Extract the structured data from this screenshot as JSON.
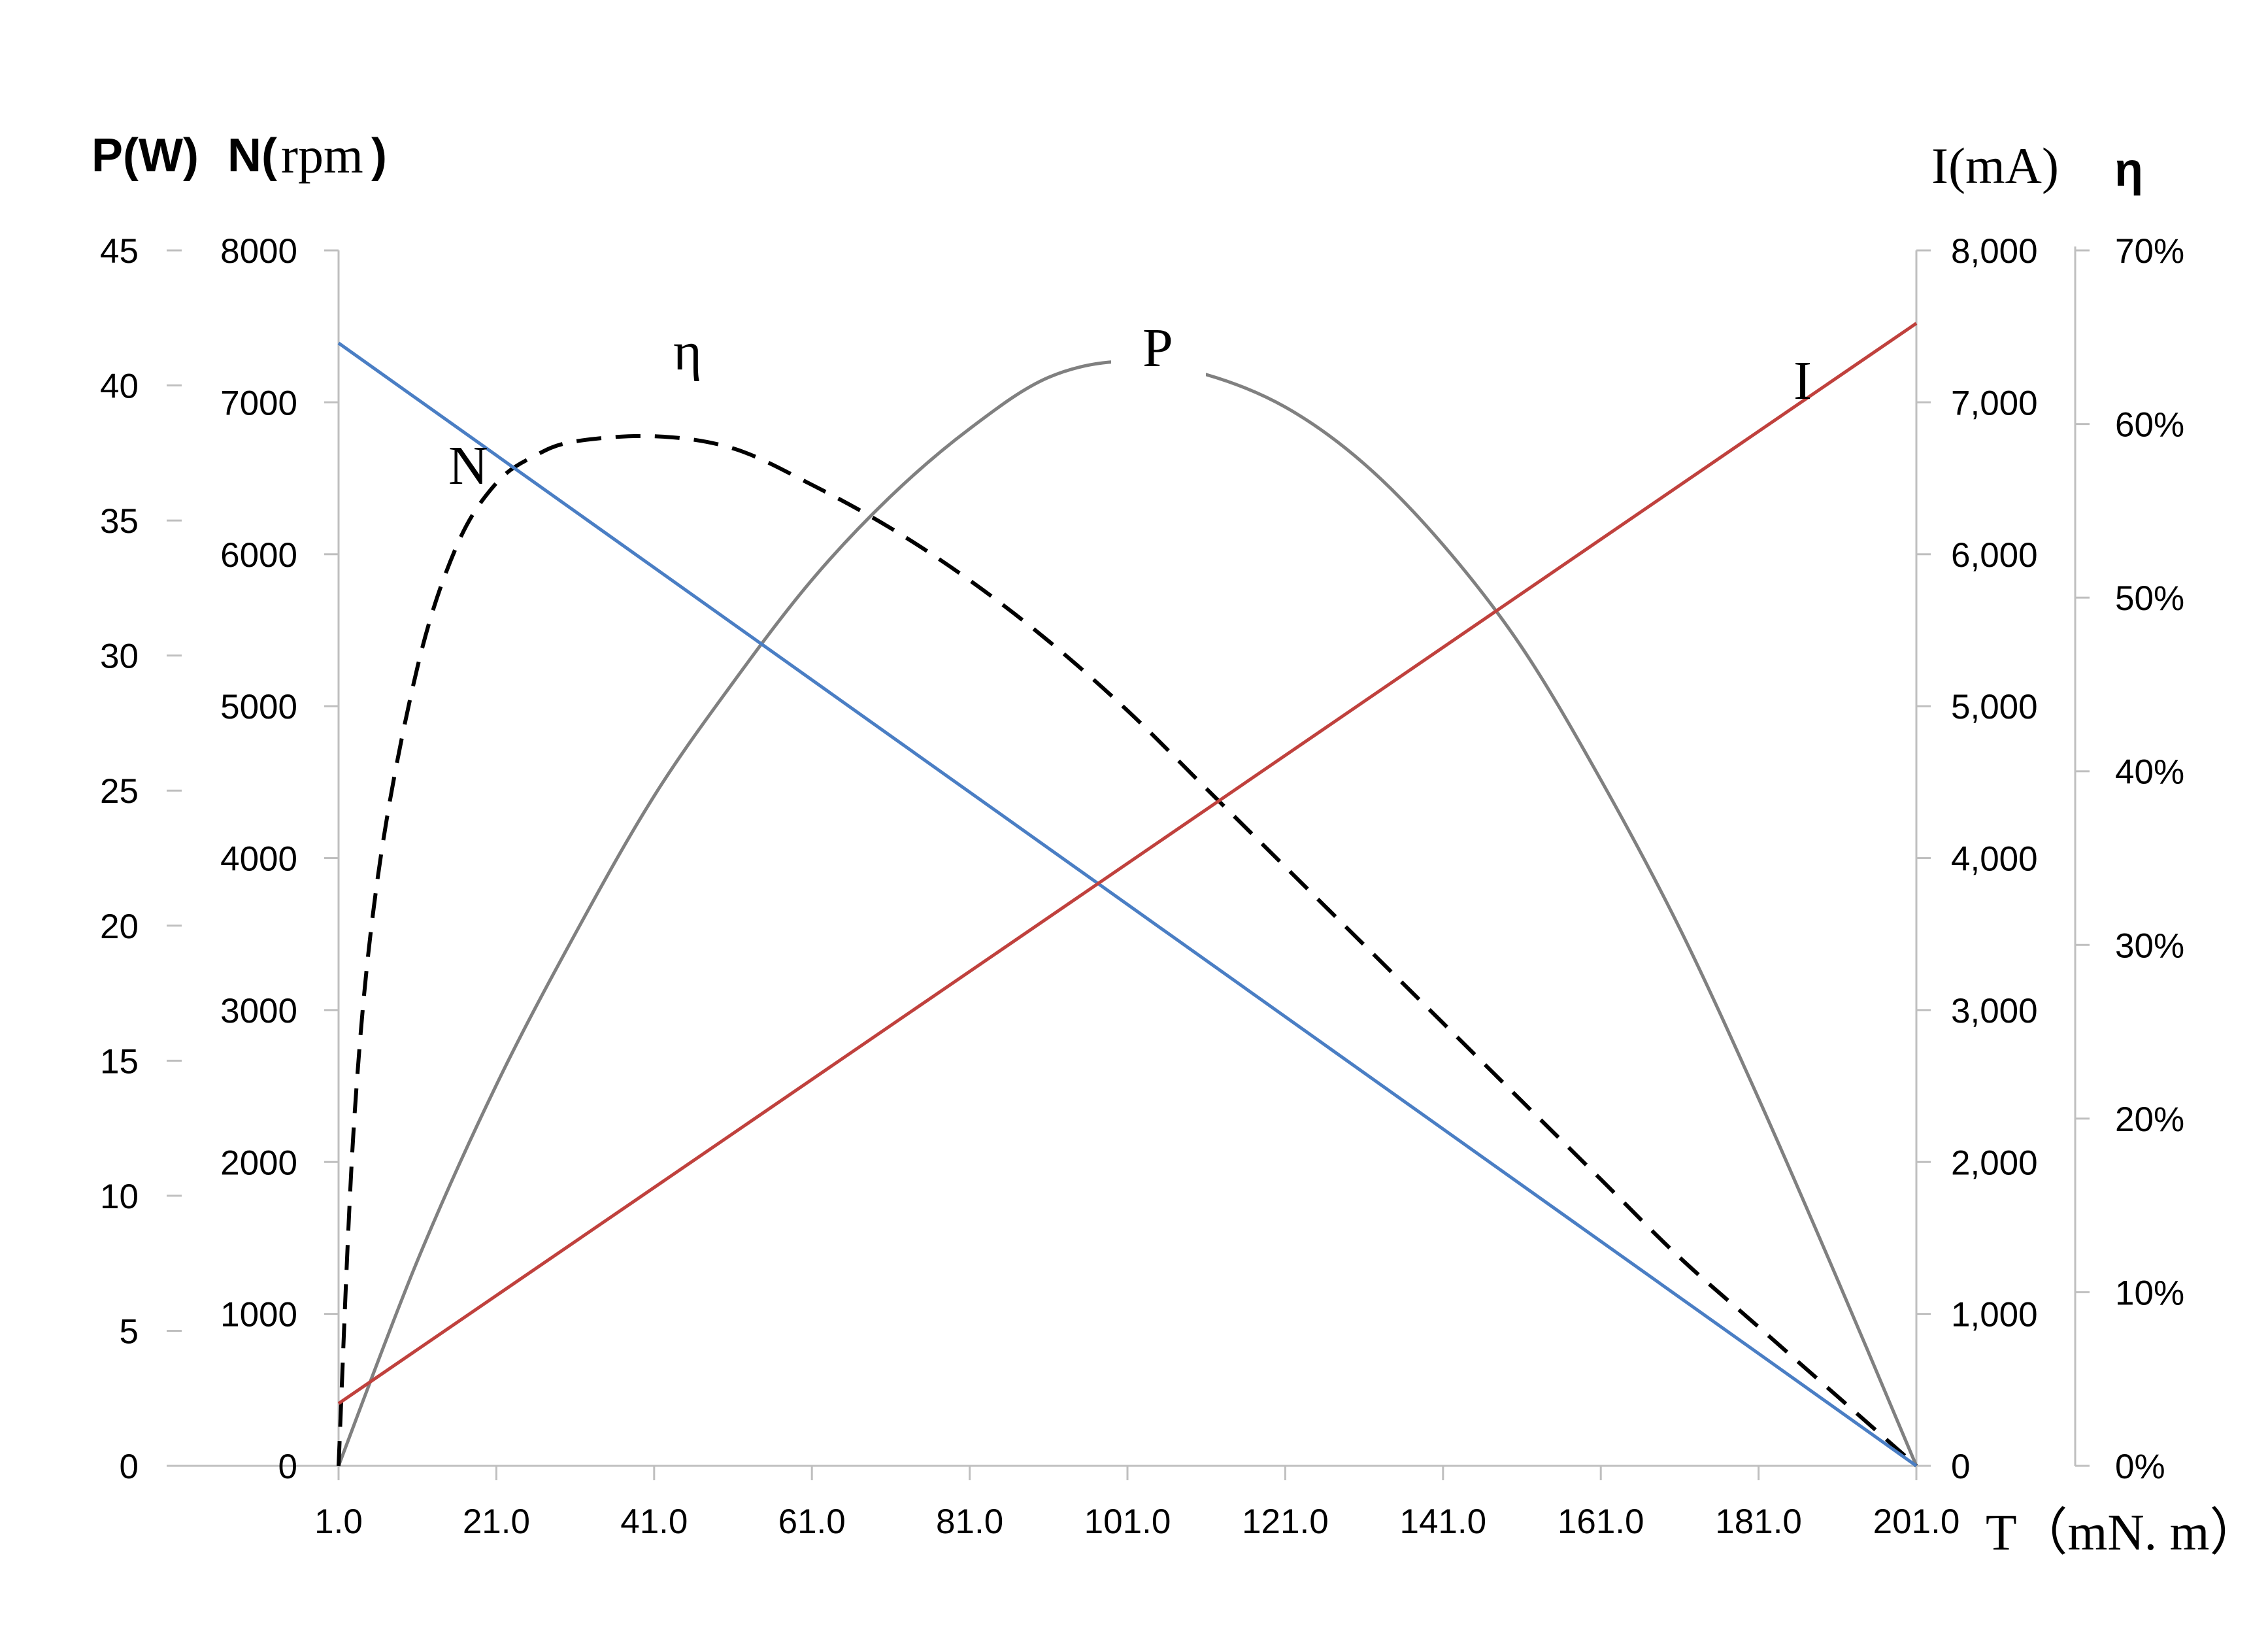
{
  "chart_data": {
    "type": "line",
    "x": [
      1,
      21,
      41,
      61,
      81,
      101,
      121,
      141,
      161,
      181,
      201
    ],
    "x_tick_labels": [
      "1.0",
      "21.0",
      "41.0",
      "61.0",
      "81.0",
      "101.0",
      "121.0",
      "141.0",
      "161.0",
      "181.0",
      "201.0"
    ],
    "xlabel": "T（mN. m）",
    "xlim": [
      1,
      201
    ],
    "axes": {
      "P": {
        "label_a": "P(W)",
        "ticks": [
          "0",
          "5",
          "10",
          "15",
          "20",
          "25",
          "30",
          "35",
          "40",
          "45"
        ],
        "ylim": [
          0,
          45
        ]
      },
      "N": {
        "label_a": "N(",
        "label_b": "rpm",
        "label_c": ")",
        "ticks": [
          "0",
          "1000",
          "2000",
          "3000",
          "4000",
          "5000",
          "6000",
          "7000",
          "8000"
        ],
        "ylim": [
          0,
          8000
        ]
      },
      "I": {
        "label": "I(mA)",
        "ticks": [
          "0",
          "1,000",
          "2,000",
          "3,000",
          "4,000",
          "5,000",
          "6,000",
          "7,000",
          "8,000"
        ],
        "ylim": [
          0,
          8000
        ]
      },
      "eta": {
        "label": "η",
        "ticks": [
          "0%",
          "10%",
          "20%",
          "30%",
          "40%",
          "50%",
          "60%",
          "70%"
        ],
        "ylim": [
          0,
          0.7
        ]
      }
    },
    "series": [
      {
        "name": "N",
        "axis": "N",
        "color": "#4a7ec4",
        "style": "solid",
        "x": [
          1,
          201
        ],
        "values": [
          7390,
          0
        ]
      },
      {
        "name": "I",
        "axis": "I",
        "color": "#c0413d",
        "style": "solid",
        "x": [
          1,
          201
        ],
        "values": [
          410,
          7520
        ]
      },
      {
        "name": "P",
        "axis": "P",
        "color": "#808080",
        "style": "solid",
        "x": [
          1,
          11,
          21,
          31,
          41,
          51,
          61,
          71,
          81,
          91,
          101,
          111,
          121,
          131,
          141,
          151,
          161,
          171,
          181,
          191,
          201
        ],
        "values": [
          0,
          7.6,
          14.1,
          19.7,
          24.8,
          29.0,
          32.8,
          35.9,
          38.4,
          40.3,
          40.9,
          40.4,
          39.2,
          37.1,
          34.1,
          30.3,
          25.4,
          19.9,
          13.6,
          6.9,
          0
        ]
      },
      {
        "name": "η",
        "axis": "eta",
        "color": "#000000",
        "style": "dashed",
        "x": [
          1,
          3,
          6,
          11,
          16,
          21,
          26,
          31,
          41,
          51,
          61,
          71,
          81,
          91,
          101,
          111,
          121,
          131,
          141,
          151,
          161,
          171,
          181,
          191,
          201
        ],
        "values": [
          0,
          0.2,
          0.34,
          0.46,
          0.53,
          0.566,
          0.582,
          0.59,
          0.593,
          0.586,
          0.565,
          0.54,
          0.51,
          0.475,
          0.435,
          0.39,
          0.345,
          0.3,
          0.255,
          0.21,
          0.165,
          0.12,
          0.08,
          0.04,
          0
        ]
      }
    ],
    "grid": false,
    "legend": "none"
  }
}
